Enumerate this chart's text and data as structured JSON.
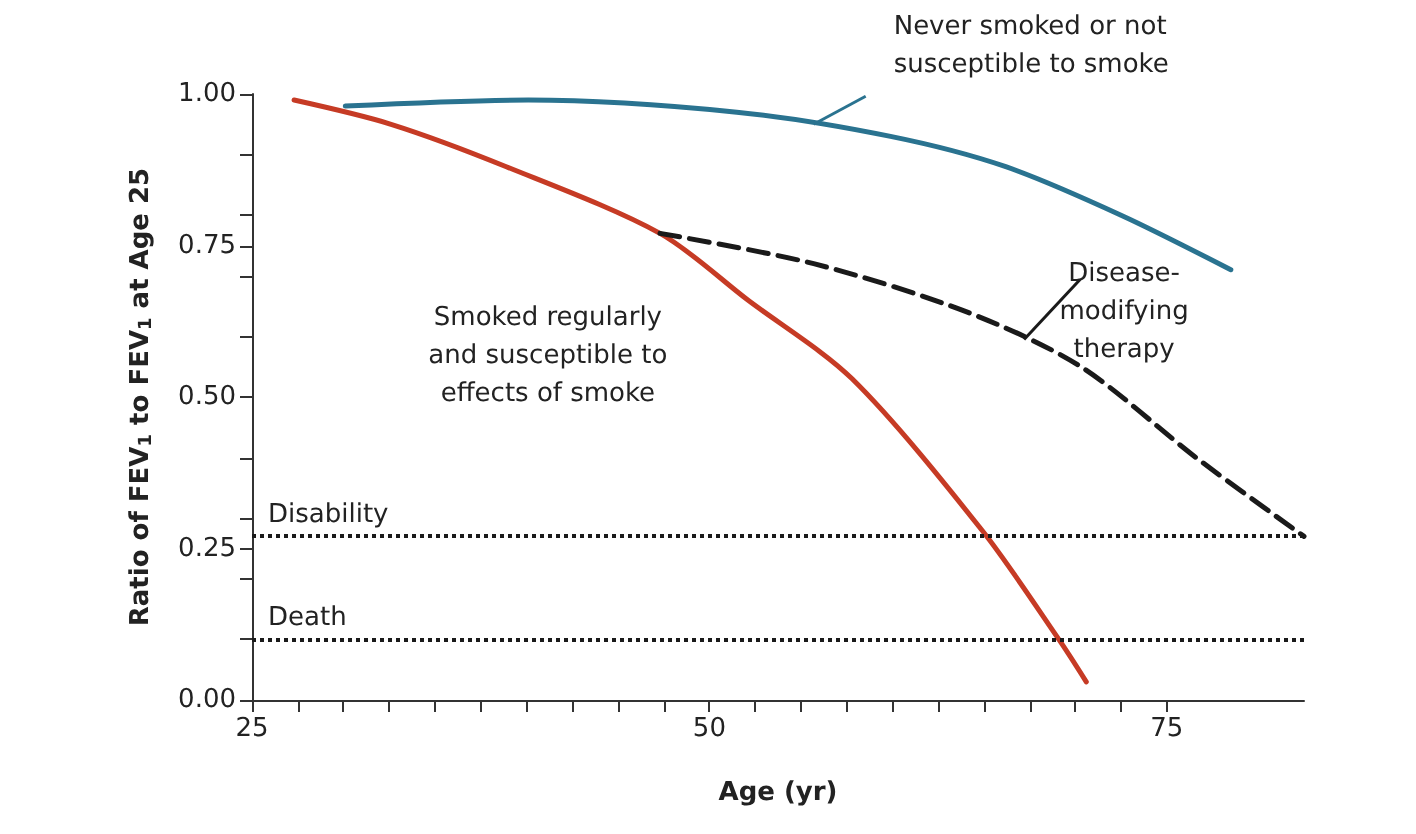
{
  "chart_data": {
    "type": "line",
    "xlabel": "Age (yr)",
    "ylabel": "Ratio of FEV$_{1}$ to FEV$_{1}$ at Age 25",
    "xlim": [
      25,
      82.5
    ],
    "xticks": [
      25,
      {
        "value": 27.5,
        "label": null
      },
      {
        "value": 30,
        "label": null
      },
      {
        "value": 32.5,
        "label": null
      },
      {
        "value": 35,
        "label": null
      },
      {
        "value": 37.5,
        "label": null
      },
      {
        "value": 40,
        "label": null
      },
      {
        "value": 42.5,
        "label": null
      },
      {
        "value": 45,
        "label": null
      },
      {
        "value": 47.5,
        "label": null
      },
      50,
      {
        "value": 52.5,
        "label": null
      },
      {
        "value": 55,
        "label": null
      },
      {
        "value": 57.5,
        "label": null
      },
      {
        "value": 60,
        "label": null
      },
      {
        "value": 62.5,
        "label": null
      },
      {
        "value": 65,
        "label": null
      },
      {
        "value": 67.5,
        "label": null
      },
      {
        "value": 70,
        "label": null
      },
      {
        "value": 72.5,
        "label": null
      },
      75
    ],
    "ylim": [
      0,
      1
    ],
    "yticks": [
      {
        "value": 0,
        "label": "0.00"
      },
      {
        "value": 0.1,
        "label": null
      },
      {
        "value": 0.2,
        "label": null
      },
      {
        "value": 0.25,
        "label": "0.25"
      },
      {
        "value": 0.3,
        "label": null
      },
      {
        "value": 0.4,
        "label": null
      },
      {
        "value": 0.5,
        "label": "0.50"
      },
      {
        "value": 0.6,
        "label": null
      },
      {
        "value": 0.7,
        "label": null
      },
      {
        "value": 0.75,
        "label": "0.75"
      },
      {
        "value": 0.8,
        "label": null
      },
      {
        "value": 0.9,
        "label": null
      },
      {
        "value": 1,
        "label": "1.00"
      }
    ],
    "grid": false,
    "legend": false,
    "marker": "none",
    "series": [
      {
        "name": "Never smoked or not\nsusceptible to smoke",
        "color": "#2a7390",
        "line_style": "solid",
        "x": [
          30.1,
          40.1,
          51.5,
          59.9,
          66.2,
          72.5,
          78.5
        ],
        "values": [
          0.98,
          0.99,
          0.97,
          0.93,
          0.88,
          0.8,
          0.71
        ]
      },
      {
        "name": "Smoked regularly\nand susceptible to\neffects of smoke",
        "color": "#c63b25",
        "line_style": "solid",
        "x": [
          27.3,
          32.6,
          38.9,
          47.3,
          52.1,
          57.8,
          64.9,
          69.1,
          70.6
        ],
        "values": [
          0.99,
          0.95,
          0.88,
          0.77,
          0.66,
          0.53,
          0.28,
          0.1,
          0.03
        ]
      },
      {
        "name": "Disease-\nmodifying\ntherapy",
        "color": "#1a1a1a",
        "line_style": "dashed",
        "x": [
          47.3,
          55.7,
          64.1,
          70.3,
          76.6,
          82.5
        ],
        "values": [
          0.77,
          0.72,
          0.64,
          0.55,
          0.4,
          0.27
        ]
      }
    ],
    "ref_lines": [
      {
        "axis": "y",
        "value": 0.27,
        "label": "Disability",
        "color": "#1a1a1a",
        "line_style": "dotted"
      },
      {
        "axis": "y",
        "value": 0.1,
        "label": "Death",
        "color": "#1a1a1a",
        "line_style": "dotted"
      }
    ]
  }
}
